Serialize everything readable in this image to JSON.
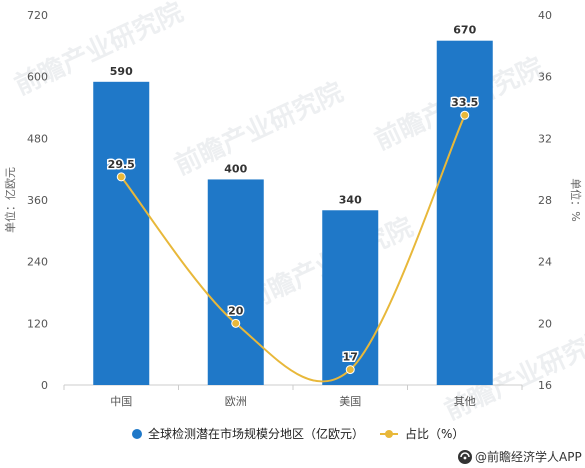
{
  "chart_data": {
    "type": "bar+line",
    "categories": [
      "中国",
      "欧洲",
      "美国",
      "其他"
    ],
    "series": [
      {
        "name": "全球检测潜在市场规模分地区（亿欧元）",
        "type": "bar",
        "axis": "left",
        "values": [
          590,
          400,
          340,
          670
        ],
        "labels": [
          "590",
          "400",
          "340",
          "670"
        ]
      },
      {
        "name": "占比（%）",
        "type": "line",
        "axis": "right",
        "values": [
          29.5,
          20,
          17,
          33.5
        ],
        "labels": [
          "29.5",
          "20",
          "17",
          "33.5"
        ]
      }
    ],
    "ylabel_left": "单位：亿欧元",
    "ylabel_right": "单位：%",
    "ylim_left": [
      0,
      720
    ],
    "ylim_right": [
      16,
      40
    ],
    "yticks_left": [
      "0",
      "120",
      "240",
      "360",
      "480",
      "600",
      "720"
    ],
    "yticks_right": [
      "16",
      "20",
      "24",
      "28",
      "32",
      "36",
      "40"
    ],
    "grid": false,
    "legend_position": "bottom"
  },
  "colors": {
    "bar": "#1f78c8",
    "line": "#e8b83a",
    "axis": "#cccccc"
  },
  "branding": {
    "text": "@前瞻经济学人APP",
    "logo_icon": "qianzhan-logo-icon"
  },
  "watermark": {
    "text": "前瞻产业研究院"
  }
}
